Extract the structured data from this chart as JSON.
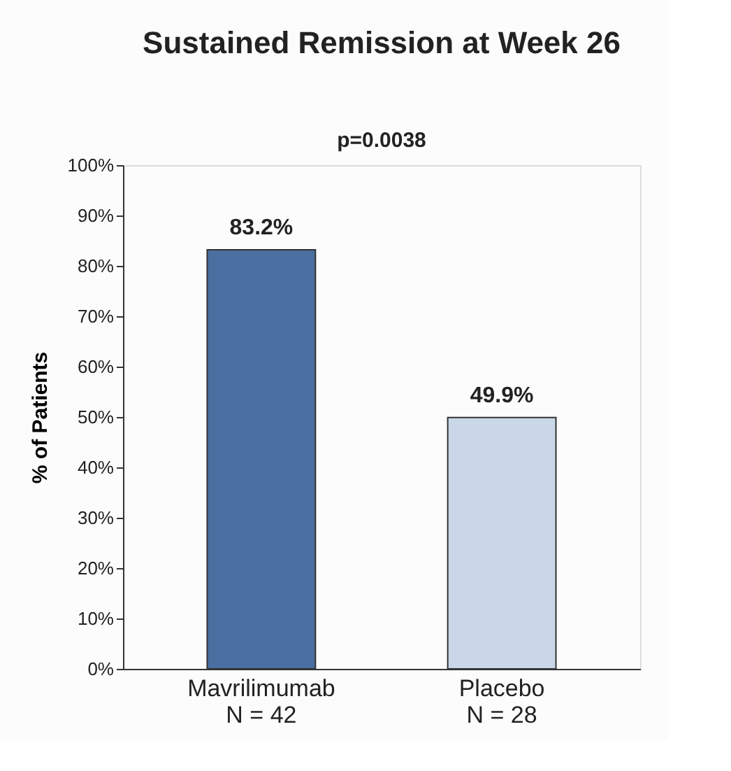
{
  "chart_data": {
    "type": "bar",
    "title": "Sustained Remission at Week 26",
    "ylabel": "% of Patients",
    "categories": [
      "Mavrilimumab\nN = 42",
      "Placebo\nN = 28"
    ],
    "values": [
      83.2,
      49.9
    ],
    "colors": [
      "#4a6fa0",
      "#c9d7e8"
    ],
    "ylim": [
      0,
      100
    ],
    "yticks": [
      {
        "value": 0,
        "label": "0%"
      },
      {
        "value": 10,
        "label": "10%"
      },
      {
        "value": 20,
        "label": "20%"
      },
      {
        "value": 30,
        "label": "30%"
      },
      {
        "value": 40,
        "label": "40%"
      },
      {
        "value": 50,
        "label": "50%"
      },
      {
        "value": 60,
        "label": "60%"
      },
      {
        "value": 70,
        "label": "70%"
      },
      {
        "value": 80,
        "label": "80%"
      },
      {
        "value": 90,
        "label": "90%"
      },
      {
        "value": 100,
        "label": "100%"
      }
    ],
    "value_labels": [
      "83.2%",
      "49.9%"
    ],
    "annotations": [
      "p=0.0038"
    ],
    "grid": false
  }
}
